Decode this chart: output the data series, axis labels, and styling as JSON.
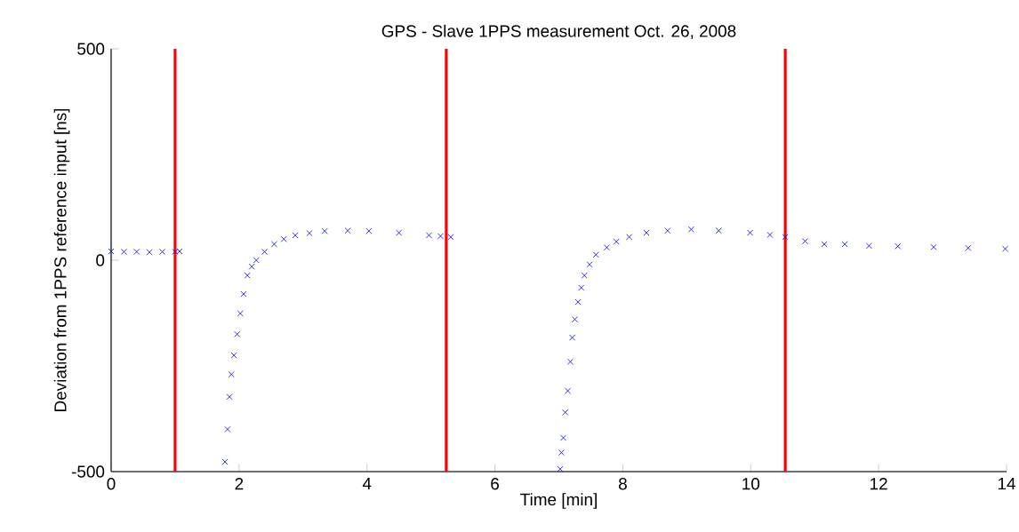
{
  "chart_data": {
    "type": "scatter",
    "title": "GPS - Slave 1PPS measurement Oct. 26, 2008",
    "xlabel": "Time [min]",
    "ylabel": "Deviation from 1PPS reference input [ns]",
    "xlim": [
      0,
      14
    ],
    "ylim": [
      -500,
      500
    ],
    "xticks": [
      0,
      2,
      4,
      6,
      8,
      10,
      12,
      14
    ],
    "yticks": [
      -500,
      0,
      500
    ],
    "grid": false,
    "marker": "cross",
    "series": [
      {
        "color": "#0000ff",
        "x": [
          0,
          0.2,
          0.4,
          0.6,
          0.8,
          1.0,
          1.07,
          1.78,
          1.82,
          1.85,
          1.88,
          1.92,
          1.97,
          2.02,
          2.07,
          2.13,
          2.2,
          2.27,
          2.4,
          2.55,
          2.7,
          2.88,
          3.1,
          3.34,
          3.7,
          4.03,
          4.5,
          4.97,
          5.15,
          5.31,
          7.02,
          7.04,
          7.07,
          7.1,
          7.14,
          7.18,
          7.21,
          7.25,
          7.3,
          7.35,
          7.4,
          7.48,
          7.58,
          7.75,
          7.9,
          8.1,
          8.37,
          8.7,
          9.07,
          9.5,
          9.99,
          10.3,
          10.54,
          10.85,
          11.15,
          11.47,
          11.85,
          12.3,
          12.86,
          13.4,
          13.98
        ],
        "values": [
          21,
          20,
          20,
          19,
          20,
          20,
          21,
          -477,
          -400,
          -323,
          -270,
          -225,
          -175,
          -126,
          -80,
          -36,
          -15,
          0,
          20,
          38,
          50,
          59,
          64,
          69,
          70,
          69,
          65,
          59,
          57,
          55,
          -494,
          -455,
          -420,
          -360,
          -309,
          -240,
          -183,
          -140,
          -99,
          -65,
          -36,
          -10,
          13,
          30,
          44,
          55,
          65,
          70,
          73,
          70,
          65,
          60,
          55,
          45,
          38,
          38,
          34,
          33,
          31,
          29,
          27
        ]
      }
    ],
    "ref_lines": [
      {
        "axis": "x",
        "value": 1.0,
        "color": "#ff0000"
      },
      {
        "axis": "x",
        "value": 5.24,
        "color": "#ff0000"
      },
      {
        "axis": "x",
        "value": 10.54,
        "color": "#ff0000"
      }
    ]
  }
}
